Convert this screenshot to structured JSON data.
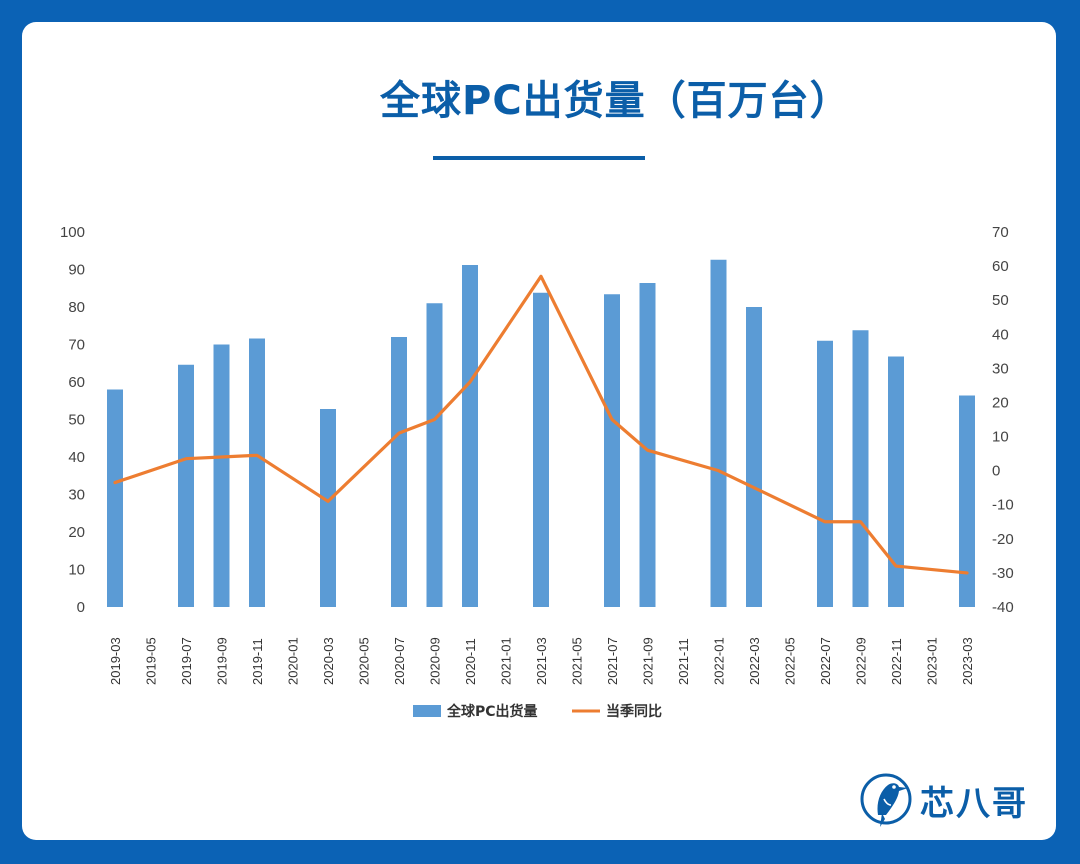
{
  "title": "全球PC出货量（百万台）",
  "brand": {
    "name": "芯八哥",
    "logo_icon": "kingfisher-bird-icon"
  },
  "colors": {
    "background": "#0b62b5",
    "title": "#0b5ea8",
    "bar": "#5b9bd5",
    "line": "#ed7d31"
  },
  "chart_data": {
    "type": "bar+line",
    "categories": [
      "2019-03",
      "2019-05",
      "2019-07",
      "2019-09",
      "2019-11",
      "2020-01",
      "2020-03",
      "2020-05",
      "2020-07",
      "2020-09",
      "2020-11",
      "2021-01",
      "2021-03",
      "2021-05",
      "2021-07",
      "2021-09",
      "2021-11",
      "2022-01",
      "2022-03",
      "2022-05",
      "2022-07",
      "2022-09",
      "2022-11",
      "2023-01",
      "2023-03"
    ],
    "series": [
      {
        "name": "全球PC出货量",
        "type": "bar",
        "axis": "left",
        "points": [
          {
            "x": "2019-03",
            "y": 58
          },
          {
            "x": "2019-07",
            "y": 64.6
          },
          {
            "x": "2019-09",
            "y": 70
          },
          {
            "x": "2019-11",
            "y": 71.6
          },
          {
            "x": "2020-03",
            "y": 52.8
          },
          {
            "x": "2020-07",
            "y": 72
          },
          {
            "x": "2020-09",
            "y": 81
          },
          {
            "x": "2020-11",
            "y": 91.2
          },
          {
            "x": "2021-03",
            "y": 83.8
          },
          {
            "x": "2021-07",
            "y": 83.4
          },
          {
            "x": "2021-09",
            "y": 86.4
          },
          {
            "x": "2022-01",
            "y": 92.6
          },
          {
            "x": "2022-03",
            "y": 80
          },
          {
            "x": "2022-07",
            "y": 71
          },
          {
            "x": "2022-09",
            "y": 73.8
          },
          {
            "x": "2022-11",
            "y": 66.8
          },
          {
            "x": "2023-03",
            "y": 56.4
          }
        ]
      },
      {
        "name": "当季同比",
        "type": "line",
        "axis": "right",
        "points": [
          {
            "x": "2019-03",
            "y": -3.5
          },
          {
            "x": "2019-07",
            "y": 3.5
          },
          {
            "x": "2019-09",
            "y": 4
          },
          {
            "x": "2019-11",
            "y": 4.5
          },
          {
            "x": "2020-03",
            "y": -9
          },
          {
            "x": "2020-07",
            "y": 11
          },
          {
            "x": "2020-09",
            "y": 15
          },
          {
            "x": "2020-11",
            "y": 26
          },
          {
            "x": "2021-03",
            "y": 57
          },
          {
            "x": "2021-07",
            "y": 15
          },
          {
            "x": "2021-09",
            "y": 6
          },
          {
            "x": "2022-01",
            "y": 0
          },
          {
            "x": "2022-03",
            "y": -5
          },
          {
            "x": "2022-07",
            "y": -15
          },
          {
            "x": "2022-09",
            "y": -15
          },
          {
            "x": "2022-11",
            "y": -28
          },
          {
            "x": "2023-03",
            "y": -30
          }
        ]
      }
    ],
    "y_left": {
      "min": 0,
      "max": 100,
      "ticks": [
        0,
        10,
        20,
        30,
        40,
        50,
        60,
        70,
        80,
        90,
        100
      ]
    },
    "y_right": {
      "min": -40,
      "max": 70,
      "ticks": [
        -40,
        -30,
        -20,
        -10,
        0,
        10,
        20,
        30,
        40,
        50,
        60,
        70
      ]
    },
    "grid": false,
    "legend": {
      "position": "bottom"
    }
  }
}
